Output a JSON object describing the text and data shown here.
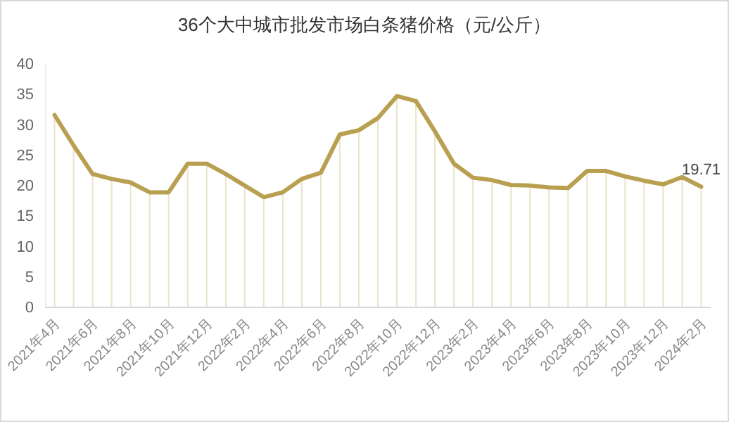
{
  "chart_data": {
    "type": "line",
    "title": "36个大中城市批发市场白条猪价格（元/公斤）",
    "categories": [
      "2021年4月",
      null,
      "2021年6月",
      null,
      "2021年8月",
      null,
      "2021年10月",
      null,
      "2021年12月",
      null,
      "2022年2月",
      null,
      "2022年4月",
      null,
      "2022年6月",
      null,
      "2022年8月",
      null,
      "2022年10月",
      null,
      "2022年12月",
      null,
      "2023年2月",
      null,
      "2023年4月",
      null,
      "2023年6月",
      null,
      "2023年8月",
      null,
      "2023年10月",
      null,
      "2023年12月",
      null,
      "2024年2月"
    ],
    "series": [
      {
        "color": "#b8a050",
        "values": [
          31.5,
          26.5,
          21.8,
          21,
          20.4,
          18.8,
          18.8,
          23.5,
          23.5,
          21.8,
          19.9,
          18,
          18.8,
          21,
          22,
          28.3,
          29,
          31,
          34.6,
          33.8,
          28.8,
          23.5,
          21.2,
          20.8,
          20,
          19.9,
          19.6,
          19.5,
          22.3,
          22.3,
          21.4,
          20.7,
          20.1,
          21.3,
          19.71
        ],
        "value_labels": [
          null,
          null,
          null,
          null,
          null,
          null,
          null,
          null,
          null,
          null,
          null,
          null,
          null,
          null,
          null,
          null,
          null,
          null,
          null,
          null,
          null,
          null,
          null,
          null,
          null,
          null,
          null,
          null,
          null,
          null,
          null,
          null,
          null,
          null,
          "19.71"
        ]
      },
      {
        "type": "bar",
        "color": "#ebe3c8",
        "values": [
          31.5,
          26.5,
          21.8,
          21,
          20.4,
          18.8,
          18.8,
          23.5,
          23.5,
          21.8,
          19.9,
          18,
          18.8,
          21,
          22,
          28.3,
          29,
          31,
          34.6,
          33.8,
          28.8,
          23.5,
          21.2,
          20.8,
          20,
          19.9,
          19.6,
          19.5,
          22.3,
          22.3,
          21.4,
          20.7,
          20.1,
          21.3,
          19.71
        ]
      }
    ],
    "ylim": [
      0,
      40
    ],
    "yticks": [
      0,
      5,
      10,
      15,
      20,
      25,
      30,
      35,
      40
    ],
    "grid": false,
    "marker": "none",
    "line_style": "solid"
  }
}
